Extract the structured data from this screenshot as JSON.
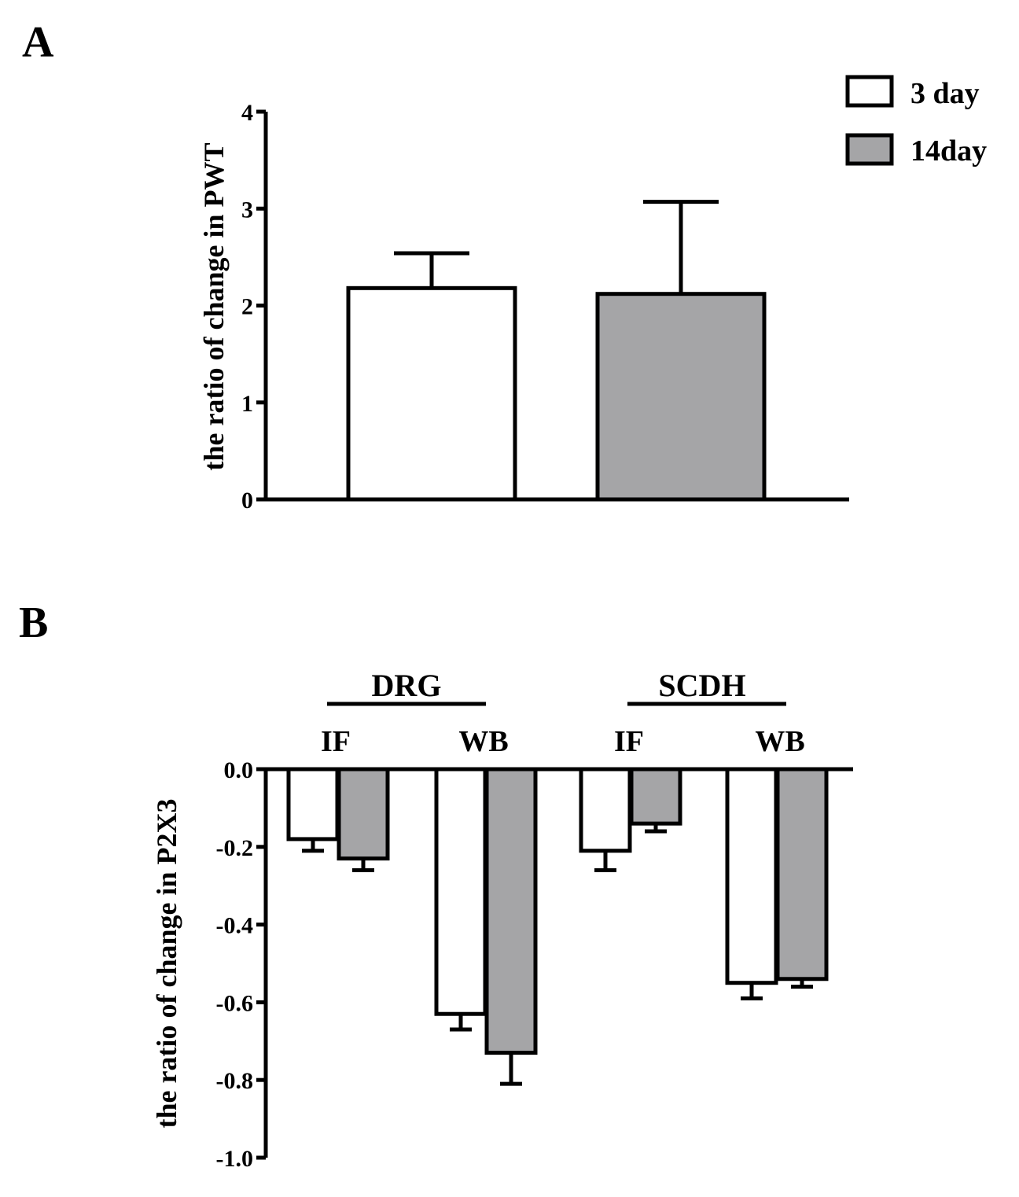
{
  "chart_data": [
    {
      "panel": "A",
      "type": "bar",
      "title": "",
      "xlabel": "",
      "ylabel": "the ratio of change in PWT",
      "ylim": [
        0,
        4
      ],
      "yticks": [
        0,
        1,
        2,
        3,
        4
      ],
      "ytick_labels": [
        "0",
        "1",
        "2",
        "3",
        "4"
      ],
      "series": [
        {
          "name": "3 day",
          "color": "#ffffff",
          "values": [
            2.18
          ],
          "errors": [
            0.36
          ]
        },
        {
          "name": "14day",
          "color": "#a5a5a7",
          "values": [
            2.12
          ],
          "errors": [
            0.95
          ]
        }
      ],
      "legend": {
        "position": "top-right",
        "entries": [
          "3 day",
          "14day"
        ]
      }
    },
    {
      "panel": "B",
      "type": "bar",
      "title": "",
      "xlabel": "",
      "ylabel": "the ratio of change in P2X3",
      "ylim": [
        -1.0,
        0.0
      ],
      "yticks": [
        0.0,
        -0.2,
        -0.4,
        -0.6,
        -0.8,
        -1.0
      ],
      "ytick_labels": [
        "0.0",
        "-0.2",
        "-0.4",
        "-0.6",
        "-0.8",
        "-1.0"
      ],
      "groups": [
        {
          "label": "DRG",
          "subgroups": [
            "IF",
            "WB"
          ]
        },
        {
          "label": "SCDH",
          "subgroups": [
            "IF",
            "WB"
          ]
        }
      ],
      "categories": [
        "DRG IF",
        "DRG WB",
        "SCDH IF",
        "SCDH WB"
      ],
      "series": [
        {
          "name": "3 day",
          "color": "#ffffff",
          "values": [
            -0.18,
            -0.63,
            -0.21,
            -0.55
          ],
          "errors": [
            0.03,
            0.04,
            0.05,
            0.04
          ]
        },
        {
          "name": "14day",
          "color": "#a5a5a7",
          "values": [
            -0.23,
            -0.73,
            -0.14,
            -0.54
          ],
          "errors": [
            0.03,
            0.08,
            0.02,
            0.02
          ]
        }
      ]
    }
  ]
}
